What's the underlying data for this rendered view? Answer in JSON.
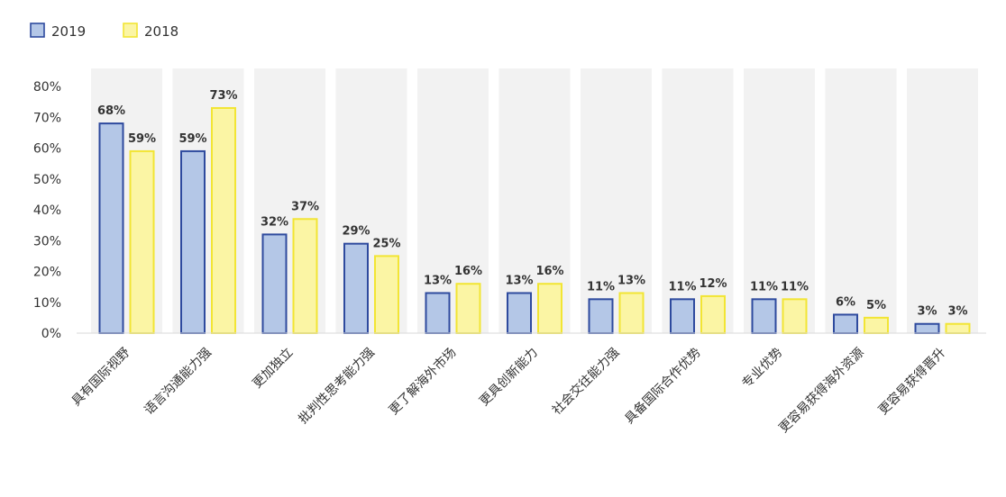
{
  "chart_data": {
    "type": "bar",
    "categories": [
      "具有国际视野",
      "语言沟通能力强",
      "更加独立",
      "批判性思考能力强",
      "更了解海外市场",
      "更具创新能力",
      "社会交往能力强",
      "具备国际合作优势",
      "专业优势",
      "更容易获得海外资源",
      "更容易获得晋升"
    ],
    "series": [
      {
        "name": "2019",
        "values": [
          68,
          59,
          32,
          29,
          13,
          13,
          11,
          11,
          11,
          6,
          3
        ],
        "labels": [
          "68%",
          "59%",
          "32%",
          "29%",
          "13%",
          "13%",
          "11%",
          "11%",
          "11%",
          "6%",
          "3%"
        ],
        "color": "#b4c7e7",
        "stroke": "#2e4a9e"
      },
      {
        "name": "2018",
        "values": [
          59,
          73,
          37,
          25,
          16,
          16,
          13,
          12,
          11,
          5,
          3
        ],
        "labels": [
          "59%",
          "73%",
          "37%",
          "25%",
          "16%",
          "16%",
          "13%",
          "12%",
          "11%",
          "5%",
          "3%"
        ],
        "color": "#fbf5a4",
        "stroke": "#f2e534"
      }
    ],
    "ylim": [
      0,
      80
    ],
    "yticks": [
      "0%",
      "10%",
      "20%",
      "30%",
      "40%",
      "50%",
      "60%",
      "70%",
      "80%"
    ],
    "legend": "top-left",
    "band_color": "#f2f2f2",
    "grid": false
  }
}
